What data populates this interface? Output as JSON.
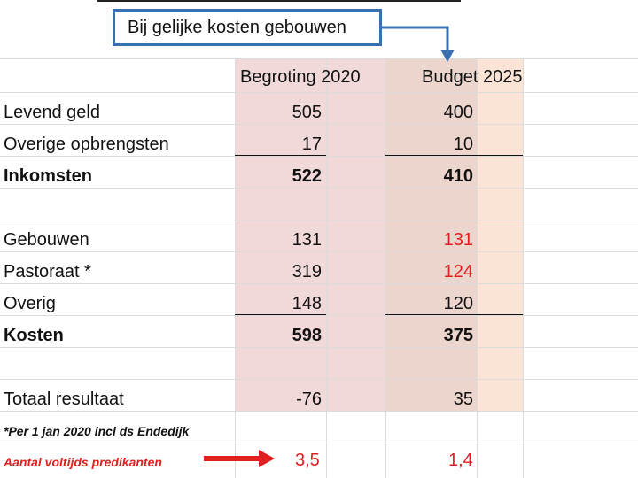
{
  "callout": {
    "text": "Bij gelijke kosten gebouwen"
  },
  "headers": {
    "col1": "Begroting 2020",
    "col2": "Budget 2025"
  },
  "rows": [
    {
      "label": "Levend geld",
      "v1": "505",
      "v2": "400"
    },
    {
      "label": "Overige opbrengsten",
      "v1": "17",
      "v2": "10"
    },
    {
      "label": "Inkomsten",
      "v1": "522",
      "v2": "410"
    },
    {
      "label": "Gebouwen",
      "v1": "131",
      "v2": "131"
    },
    {
      "label": "Pastoraat *",
      "v1": "319",
      "v2": "124"
    },
    {
      "label": "Overig",
      "v1": "148",
      "v2": "120"
    },
    {
      "label": "Kosten",
      "v1": "598",
      "v2": "375"
    },
    {
      "label": "Totaal resultaat",
      "v1": "-76",
      "v2": "35"
    }
  ],
  "note": "*Per 1 jan 2020 incl ds Endedijk",
  "fte": {
    "label": "Aantal voltijds predikanten",
    "v1": "3,5",
    "v2": "1,4"
  },
  "colors": {
    "highlight_red": "#e02020",
    "callout_border": "#3a6fb0",
    "col1_bg": "#f1d8d9",
    "col2_bg": "#ebd5cc",
    "col3_bg": "#fbe4d6"
  }
}
